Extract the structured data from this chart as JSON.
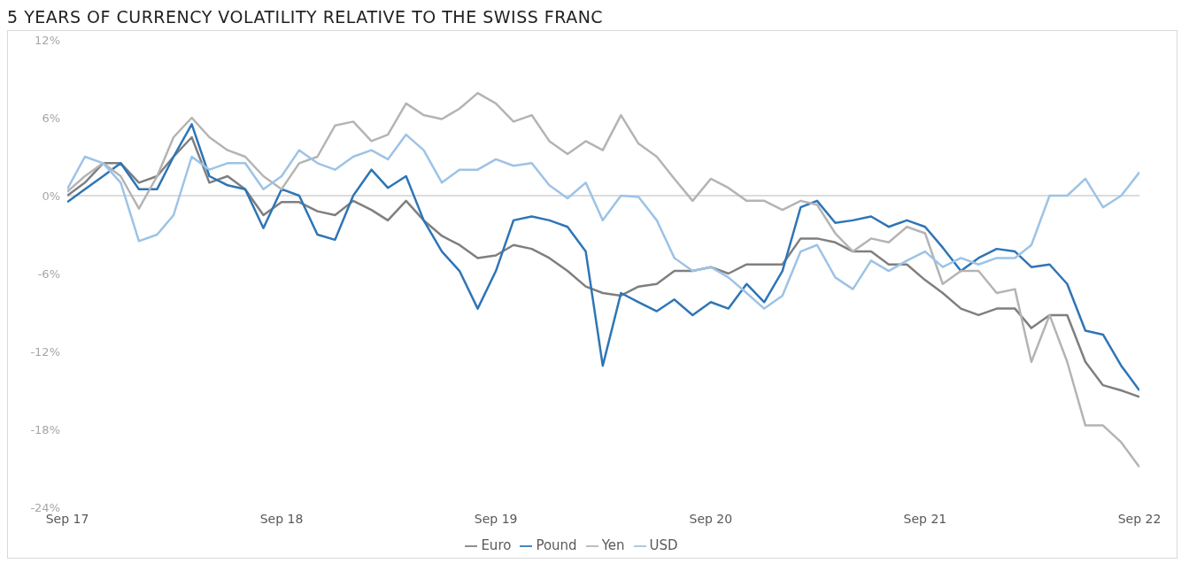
{
  "chart_data": {
    "type": "line",
    "title": "5 YEARS OF CURRENCY VOLATILITY RELATIVE TO THE SWISS FRANC",
    "x": [
      "2017-09",
      "2017-10",
      "2017-11",
      "2017-12",
      "2018-01",
      "2018-02",
      "2018-03",
      "2018-04",
      "2018-05",
      "2018-06",
      "2018-07",
      "2018-08",
      "2018-09",
      "2018-10",
      "2018-11",
      "2018-12",
      "2019-01",
      "2019-02",
      "2019-03",
      "2019-04",
      "2019-05",
      "2019-06",
      "2019-07",
      "2019-08",
      "2019-09",
      "2019-10",
      "2019-11",
      "2019-12",
      "2020-01",
      "2020-02",
      "2020-03",
      "2020-04",
      "2020-05",
      "2020-06",
      "2020-07",
      "2020-08",
      "2020-09",
      "2020-10",
      "2020-11",
      "2020-12",
      "2021-01",
      "2021-02",
      "2021-03",
      "2021-04",
      "2021-05",
      "2021-06",
      "2021-07",
      "2021-08",
      "2021-09",
      "2021-10",
      "2021-11",
      "2021-12",
      "2022-01",
      "2022-02",
      "2022-03",
      "2022-04",
      "2022-05",
      "2022-06",
      "2022-07",
      "2022-08",
      "2022-09"
    ],
    "series": [
      {
        "name": "Euro",
        "color": "#7f7f7f",
        "values": [
          0,
          1.0,
          2.5,
          2.5,
          1.0,
          1.5,
          3.0,
          4.5,
          1.0,
          1.5,
          0.5,
          -1.5,
          -0.5,
          -0.5,
          -1.2,
          -1.5,
          -0.4,
          -1.1,
          -1.9,
          -0.4,
          -1.9,
          -3.1,
          -3.8,
          -4.8,
          -4.6,
          -3.8,
          -4.1,
          -4.8,
          -5.8,
          -7.0,
          -7.5,
          -7.7,
          -7.0,
          -6.8,
          -5.8,
          -5.8,
          -5.5,
          -6.0,
          -5.3,
          -5.3,
          -5.3,
          -3.3,
          -3.3,
          -3.6,
          -4.3,
          -4.3,
          -5.3,
          -5.3,
          -6.5,
          -7.5,
          -8.7,
          -9.2,
          -8.7,
          -8.7,
          -10.2,
          -9.2,
          -9.2,
          -12.8,
          -14.6,
          -15.0,
          -15.5
        ]
      },
      {
        "name": "Pound",
        "color": "#2e75b6",
        "values": [
          -0.5,
          0.5,
          1.5,
          2.5,
          0.5,
          0.5,
          3.0,
          5.5,
          1.5,
          0.8,
          0.5,
          -2.5,
          0.5,
          0,
          -3.0,
          -3.4,
          0,
          2.0,
          0.6,
          1.5,
          -1.9,
          -4.3,
          -5.8,
          -8.7,
          -5.8,
          -1.9,
          -1.6,
          -1.9,
          -2.4,
          -4.3,
          -13.1,
          -7.5,
          -8.2,
          -8.9,
          -8.0,
          -9.2,
          -8.2,
          -8.7,
          -6.8,
          -8.2,
          -5.8,
          -0.9,
          -0.4,
          -2.1,
          -1.9,
          -1.6,
          -2.4,
          -1.9,
          -2.4,
          -4.0,
          -5.8,
          -4.8,
          -4.1,
          -4.3,
          -5.5,
          -5.3,
          -6.8,
          -10.4,
          -10.7,
          -13.1,
          -15.0
        ]
      },
      {
        "name": "Yen",
        "color": "#b4b4b4",
        "values": [
          0.3,
          1.5,
          2.5,
          1.5,
          -1.0,
          1.5,
          4.5,
          6.0,
          4.5,
          3.5,
          3.0,
          1.5,
          0.5,
          2.5,
          3.0,
          5.4,
          5.7,
          4.2,
          4.7,
          7.1,
          6.2,
          5.9,
          6.7,
          7.9,
          7.1,
          5.7,
          6.2,
          4.2,
          3.2,
          4.2,
          3.5,
          6.2,
          4.0,
          3.0,
          1.3,
          -0.4,
          1.3,
          0.6,
          -0.4,
          -0.4,
          -1.1,
          -0.4,
          -0.7,
          -2.9,
          -4.3,
          -3.3,
          -3.6,
          -2.4,
          -2.9,
          -6.8,
          -5.8,
          -5.8,
          -7.5,
          -7.2,
          -12.8,
          -9.2,
          -12.8,
          -17.7,
          -17.7,
          -19.0,
          -20.9
        ]
      },
      {
        "name": "USD",
        "color": "#9dc3e6",
        "values": [
          0.5,
          3.0,
          2.5,
          1.0,
          -3.5,
          -3.0,
          -1.5,
          3.0,
          2.0,
          2.5,
          2.5,
          0.5,
          1.5,
          3.5,
          2.5,
          2.0,
          3.0,
          3.5,
          2.8,
          4.7,
          3.5,
          1.0,
          2.0,
          2.0,
          2.8,
          2.3,
          2.5,
          0.8,
          -0.2,
          1.0,
          -1.9,
          0,
          -0.1,
          -1.9,
          -4.8,
          -5.8,
          -5.5,
          -6.3,
          -7.5,
          -8.7,
          -7.7,
          -4.3,
          -3.8,
          -6.3,
          -7.2,
          -5.0,
          -5.8,
          -5.0,
          -4.3,
          -5.5,
          -4.8,
          -5.3,
          -4.8,
          -4.8,
          -3.8,
          0,
          0,
          1.3,
          -0.9,
          0,
          1.8
        ]
      }
    ],
    "xlim": [
      "2017-09",
      "2022-09"
    ],
    "xticks": [
      {
        "value": "2017-09",
        "label": "Sep 17"
      },
      {
        "value": "2018-09",
        "label": "Sep 18"
      },
      {
        "value": "2019-09",
        "label": "Sep 19"
      },
      {
        "value": "2020-09",
        "label": "Sep 20"
      },
      {
        "value": "2021-09",
        "label": "Sep 21"
      },
      {
        "value": "2022-09",
        "label": "Sep 22"
      }
    ],
    "ylim": [
      -24,
      12
    ],
    "yticks": [
      {
        "value": -24,
        "label": "-24%"
      },
      {
        "value": -18,
        "label": "-18%"
      },
      {
        "value": -12,
        "label": "-12%"
      },
      {
        "value": -6,
        "label": "-6%"
      },
      {
        "value": 0,
        "label": "0%"
      },
      {
        "value": 6,
        "label": "6%"
      },
      {
        "value": 12,
        "label": "12%"
      }
    ],
    "ref_lines": [
      {
        "axis": "y",
        "value": 0,
        "color": "#d0d0d0"
      }
    ],
    "grid": false,
    "legend": "bottom",
    "marker": "none",
    "line_style": "solid"
  }
}
